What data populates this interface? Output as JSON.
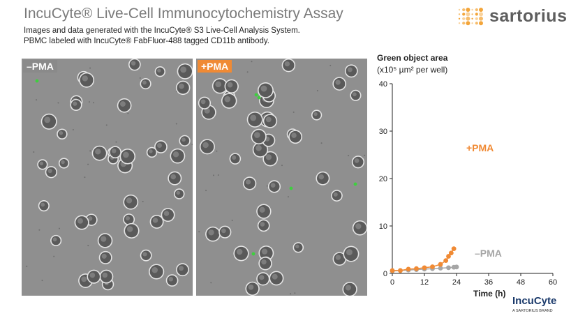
{
  "header": {
    "title": "IncuCyte® Live-Cell Immunocytochemistry Assay",
    "subtitle_1": "Images and data generated with the IncuCyte® S3 Live-Cell Analysis System.",
    "subtitle_2": "PBMC labeled with IncuCyte® FabFluor-488 tagged CD11b antibody."
  },
  "logo": {
    "text": "sartorius",
    "color": "#f3a53a"
  },
  "images": {
    "left_label": "–PMA",
    "right_label": "+PMA",
    "right_label_color": "#f08a34",
    "green_spot_color": "#3ecf3e"
  },
  "chart_data": {
    "type": "line",
    "ylabel_1": "Green object area",
    "ylabel_2": "(x10⁵ µm² per well)",
    "xlabel": "Time (h)",
    "xlim": [
      0,
      60
    ],
    "ylim": [
      0,
      40
    ],
    "xticks": [
      0,
      12,
      24,
      36,
      48,
      60
    ],
    "yticks": [
      0,
      10,
      20,
      30,
      40
    ],
    "grid": false,
    "series": [
      {
        "name": "+PMA",
        "color": "#f08a34",
        "points": [
          [
            0,
            0.6
          ],
          [
            3,
            0.6
          ],
          [
            6,
            0.9
          ],
          [
            9,
            1.0
          ],
          [
            12,
            1.2
          ],
          [
            15,
            1.4
          ],
          [
            18,
            1.9
          ],
          [
            20,
            2.7
          ],
          [
            21,
            3.6
          ],
          [
            22,
            4.3
          ],
          [
            23,
            5.2
          ]
        ]
      },
      {
        "name": "–PMA",
        "color": "#a6a6a6",
        "points": [
          [
            0,
            0.5
          ],
          [
            3,
            0.6
          ],
          [
            6,
            0.7
          ],
          [
            9,
            0.8
          ],
          [
            12,
            0.9
          ],
          [
            15,
            1.0
          ],
          [
            18,
            1.1
          ],
          [
            21,
            1.2
          ],
          [
            23,
            1.3
          ],
          [
            24,
            1.35
          ]
        ]
      }
    ]
  },
  "brand": {
    "name": "IncuCyte",
    "tagline": "A SARTORIUS BRAND"
  }
}
